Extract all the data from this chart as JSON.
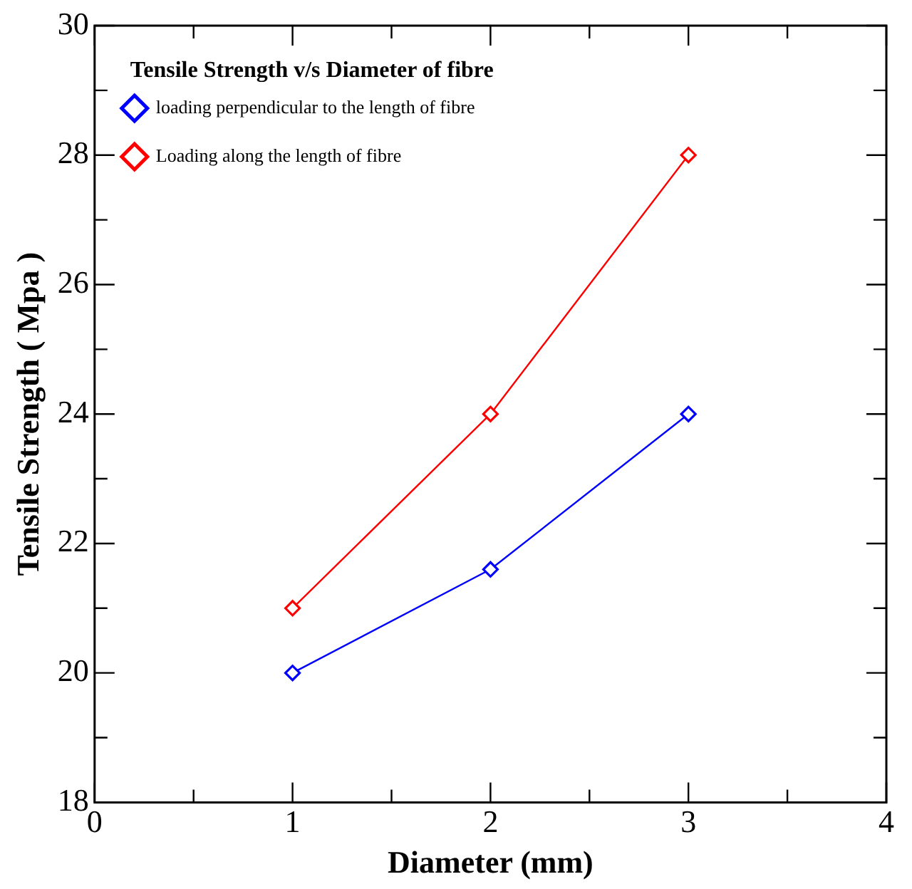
{
  "chart_data": {
    "type": "line",
    "xlabel": "Diameter (mm)",
    "ylabel": "Tensile Strength ( Mpa )",
    "legend_title": "Tensile Strength v/s Diameter of fibre",
    "x": [
      1,
      2,
      3
    ],
    "series": [
      {
        "name": "loading perpendicular to the length of fibre",
        "color": "#0000ff",
        "values": [
          20,
          21.6,
          24
        ]
      },
      {
        "name": "Loading along the length of fibre",
        "color": "#ff0000",
        "values": [
          21,
          24,
          28
        ]
      }
    ],
    "xlim": [
      0,
      4
    ],
    "xticks": [
      0,
      {
        "value": 0.5,
        "label": null
      },
      1,
      {
        "value": 1.5,
        "label": null
      },
      2,
      {
        "value": 2.5,
        "label": null
      },
      3,
      {
        "value": 3.5,
        "label": null
      },
      4
    ],
    "ylim": [
      18,
      30
    ],
    "yticks": [
      18,
      {
        "value": 19,
        "label": null
      },
      20,
      {
        "value": 21,
        "label": null
      },
      22,
      {
        "value": 23,
        "label": null
      },
      24,
      {
        "value": 25,
        "label": null
      },
      26,
      {
        "value": 27,
        "label": null
      },
      28,
      {
        "value": 29,
        "label": null
      },
      30
    ],
    "grid": false,
    "legend": "top left",
    "marker": "diamond",
    "line_style": "solid"
  }
}
